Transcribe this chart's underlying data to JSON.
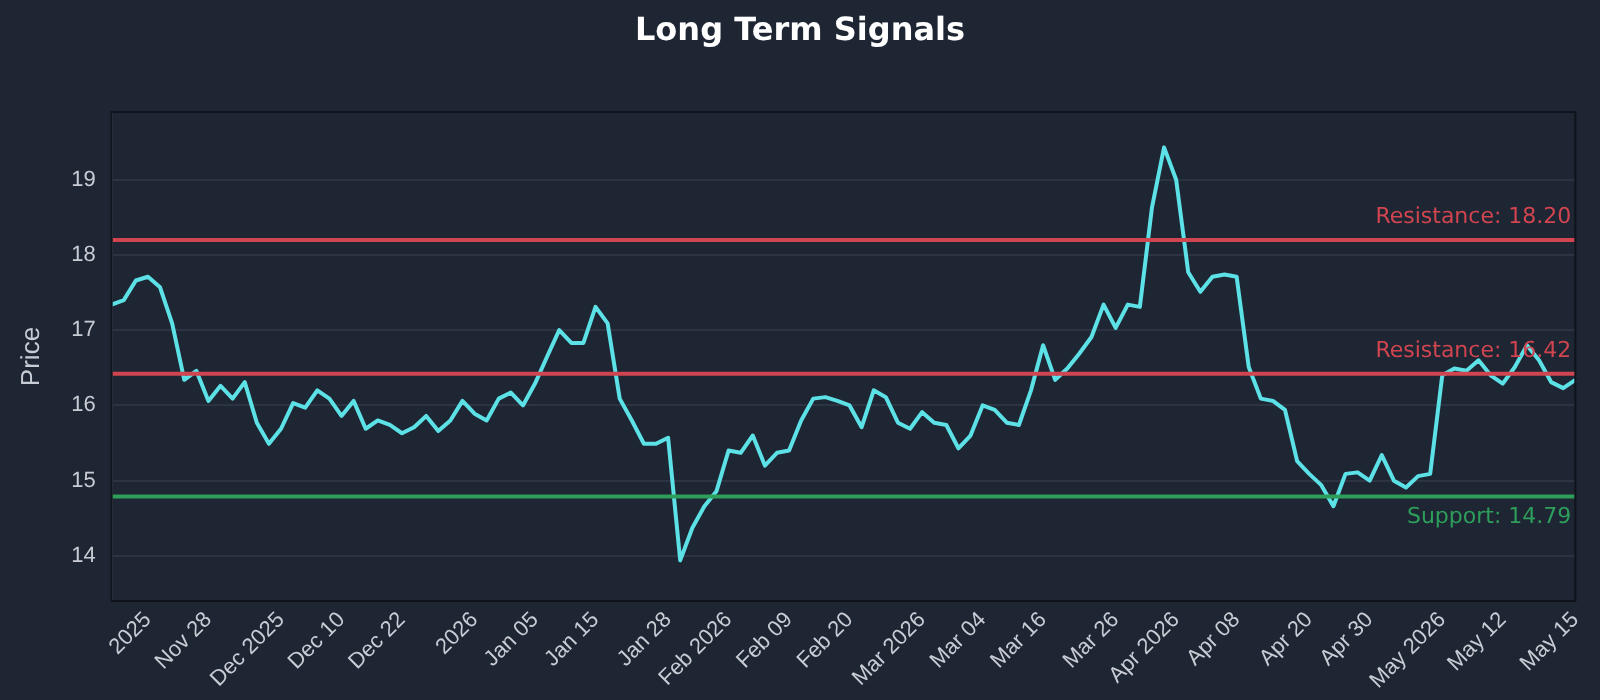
{
  "chart_data": {
    "type": "line",
    "title": "Long Term Signals",
    "ylabel": "Price",
    "categories": [
      null,
      null,
      null,
      "2025",
      null,
      null,
      null,
      null,
      "Nov 28",
      null,
      null,
      null,
      null,
      null,
      "Dec 2025",
      null,
      null,
      null,
      null,
      "Dec 10",
      null,
      null,
      null,
      null,
      "Dec 22",
      null,
      null,
      null,
      null,
      null,
      "2026",
      null,
      null,
      null,
      null,
      "Jan 05",
      null,
      null,
      null,
      null,
      "Jan 15",
      null,
      null,
      null,
      null,
      null,
      "Jan 28",
      null,
      null,
      null,
      null,
      "Feb 2026",
      null,
      null,
      null,
      null,
      "Feb 09",
      null,
      null,
      null,
      null,
      "Feb 20",
      null,
      null,
      null,
      null,
      null,
      "Mar 2026",
      null,
      null,
      null,
      null,
      "Mar 04",
      null,
      null,
      null,
      null,
      "Mar 16",
      null,
      null,
      null,
      null,
      null,
      "Mar 26",
      null,
      null,
      null,
      null,
      "Apr 2026",
      null,
      null,
      null,
      null,
      "Apr 08",
      null,
      null,
      null,
      null,
      null,
      "Apr 20",
      null,
      null,
      null,
      null,
      "Apr 30",
      null,
      null,
      null,
      null,
      null,
      "May 2026",
      null,
      null,
      null,
      null,
      "May 12",
      null,
      null,
      null,
      null,
      null,
      "May 15"
    ],
    "series": [
      {
        "color": "#5ce1e6",
        "values": [
          17.34,
          17.4,
          17.66,
          17.71,
          17.57,
          17.09,
          16.34,
          16.46,
          16.06,
          16.26,
          16.09,
          16.31,
          15.77,
          15.49,
          15.69,
          16.03,
          15.97,
          16.2,
          16.09,
          15.86,
          16.06,
          15.69,
          15.8,
          15.74,
          15.63,
          15.71,
          15.86,
          15.66,
          15.8,
          16.06,
          15.89,
          15.8,
          16.09,
          16.17,
          16.0,
          16.29,
          16.65,
          17.0,
          16.83,
          16.83,
          17.31,
          17.09,
          16.09,
          15.8,
          15.49,
          15.49,
          15.57,
          13.94,
          14.37,
          14.66,
          14.86,
          15.4,
          15.37,
          15.6,
          15.2,
          15.37,
          15.4,
          15.8,
          16.09,
          16.11,
          16.06,
          16.0,
          15.71,
          16.2,
          16.11,
          15.77,
          15.69,
          15.91,
          15.77,
          15.74,
          15.43,
          15.6,
          16.0,
          15.94,
          15.77,
          15.74,
          16.2,
          16.8,
          16.34,
          16.49,
          16.69,
          16.91,
          17.34,
          17.03,
          17.34,
          17.31,
          18.63,
          19.43,
          19.0,
          17.77,
          17.51,
          17.71,
          17.74,
          17.71,
          16.51,
          16.09,
          16.06,
          15.94,
          15.26,
          15.09,
          14.94,
          14.66,
          15.09,
          15.11,
          15.0,
          15.34,
          15.0,
          14.91,
          15.06,
          15.09,
          16.4,
          16.49,
          16.46,
          16.6,
          16.4,
          16.29,
          16.51,
          16.8,
          16.6,
          16.31,
          16.23,
          16.34
        ]
      }
    ],
    "ylim": [
      13.4,
      19.9
    ],
    "yticks": [
      14,
      15,
      16,
      17,
      18,
      19
    ],
    "grid": "y",
    "legend": false,
    "marker": "none",
    "line_style": "solid",
    "ref_lines": [
      {
        "axis": "y",
        "value": 18.2,
        "label": "Resistance: 18.20",
        "color": "#d0454f"
      },
      {
        "axis": "y",
        "value": 16.42,
        "label": "Resistance: 16.42",
        "color": "#d0454f"
      },
      {
        "axis": "y",
        "value": 14.79,
        "label": "Support: 14.79",
        "color": "#2e9e5b"
      }
    ]
  }
}
